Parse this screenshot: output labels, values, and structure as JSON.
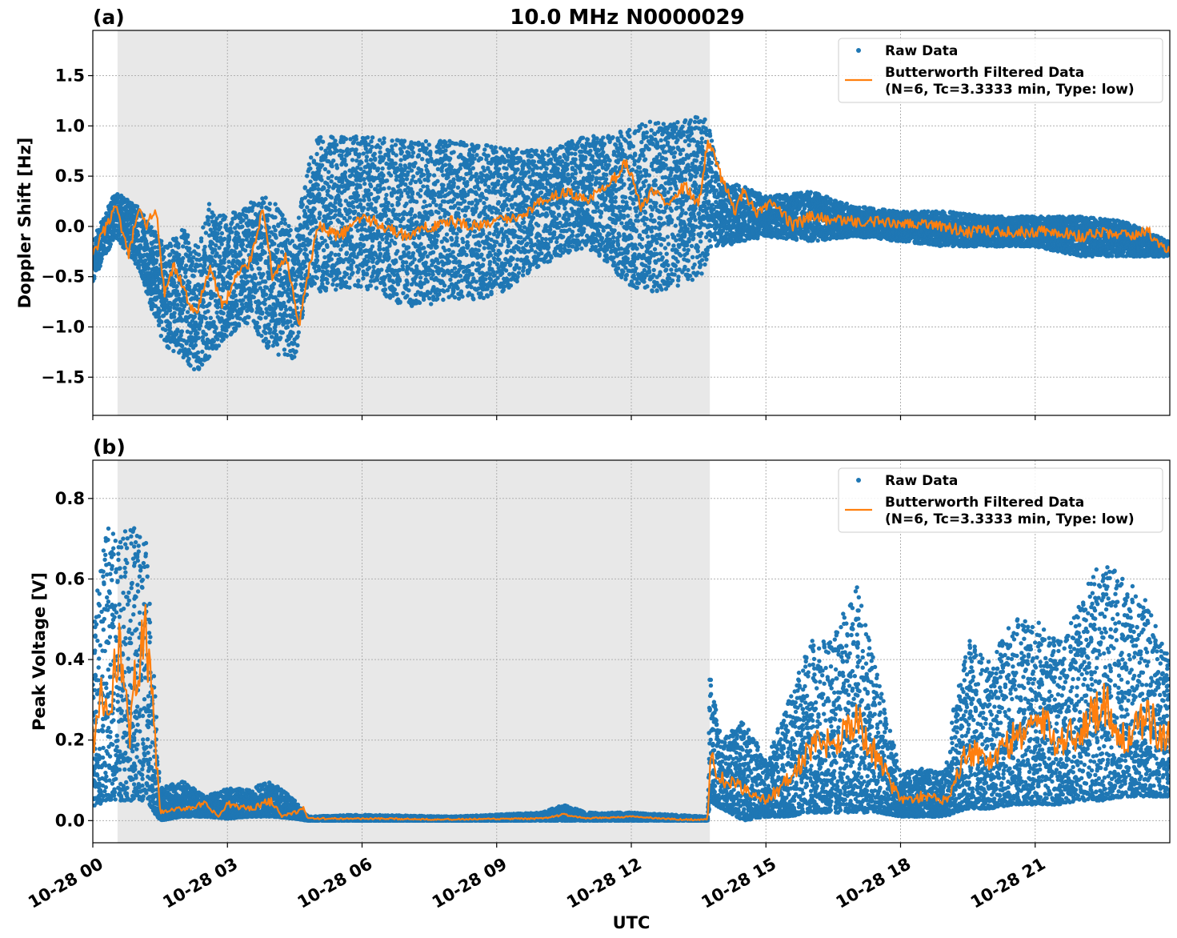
{
  "figure": {
    "suptitle": "10.0 MHz N0000029",
    "xlabel": "UTC",
    "x_tick_labels": [
      "10-28 00",
      "10-28 03",
      "10-28 06",
      "10-28 09",
      "10-28 12",
      "10-28 15",
      "10-28 18",
      "10-28 21"
    ],
    "x_ticks_hours": [
      0,
      3,
      6,
      9,
      12,
      15,
      18,
      21
    ],
    "x_range_hours": [
      0,
      24
    ],
    "shaded_span_hours": [
      0.55,
      13.75
    ],
    "colors": {
      "raw": "#1f77b4",
      "filtered": "#ff7f0e",
      "shade": "#e8e8e8",
      "grid": "#b0b0b0"
    }
  },
  "chart_data": [
    {
      "type": "line",
      "panel_label": "(a)",
      "ylabel": "Doppler Shift [Hz]",
      "ylim": [
        -1.88,
        1.95
      ],
      "y_ticks": [
        -1.5,
        -1.0,
        -0.5,
        0.0,
        0.5,
        1.0,
        1.5
      ],
      "y_tick_labels": [
        "−1.5",
        "−1.0",
        "−0.5",
        "0.0",
        "0.5",
        "1.0",
        "1.5"
      ],
      "grid": true,
      "legend_position": "top-right",
      "legend": [
        "Raw Data",
        "Butterworth Filtered Data",
        "(N=6, Tc=3.3333 min, Type: low)"
      ],
      "series": [
        {
          "name": "Butterworth Filtered Data",
          "x": [
            0,
            0.5,
            0.8,
            1.0,
            1.2,
            1.4,
            1.6,
            1.8,
            2.0,
            2.3,
            2.6,
            2.9,
            3.2,
            3.5,
            3.8,
            4.0,
            4.3,
            4.6,
            4.75,
            5.0,
            5.5,
            6.0,
            6.5,
            7.0,
            7.5,
            8.0,
            8.5,
            9.0,
            9.5,
            10.0,
            10.5,
            11.0,
            11.5,
            11.9,
            12.2,
            12.5,
            12.8,
            13.2,
            13.5,
            13.7,
            14.0,
            14.3,
            14.5,
            14.8,
            15.2,
            15.6,
            16.0,
            16.5,
            17.0,
            17.5,
            18.0,
            18.5,
            19.0,
            19.5,
            20.0,
            20.5,
            21.0,
            21.5,
            22.0,
            22.5,
            23.0,
            23.5,
            24.0
          ],
          "y": [
            -0.3,
            0.2,
            -0.3,
            0.15,
            0.0,
            0.2,
            -0.7,
            -0.4,
            -0.6,
            -0.9,
            -0.4,
            -0.8,
            -0.5,
            -0.35,
            0.2,
            -0.5,
            -0.3,
            -1.0,
            -0.6,
            0.0,
            -0.1,
            0.1,
            0.0,
            -0.1,
            0.0,
            0.05,
            0.0,
            0.05,
            0.1,
            0.25,
            0.35,
            0.25,
            0.4,
            0.65,
            0.2,
            0.35,
            0.25,
            0.4,
            0.2,
            0.85,
            0.5,
            0.15,
            0.35,
            0.15,
            0.25,
            0.0,
            0.1,
            0.05,
            0.05,
            0.05,
            0.0,
            0.05,
            0.0,
            -0.05,
            -0.05,
            -0.05,
            -0.05,
            -0.05,
            -0.1,
            -0.05,
            -0.1,
            -0.05,
            -0.25
          ]
        },
        {
          "name": "Raw Data",
          "x": [
            0,
            0.5,
            1.0,
            1.6,
            2.0,
            2.3,
            2.6,
            3.0,
            3.5,
            4.0,
            4.5,
            4.8,
            5.0,
            6.0,
            7.0,
            8.0,
            9.0,
            10.0,
            11.0,
            11.5,
            12.0,
            12.5,
            13.0,
            13.6,
            13.75,
            14.0,
            14.5,
            15.0,
            16.0,
            17.0,
            18.0,
            19.0,
            20.0,
            21.0,
            22.0,
            23.0,
            24.0
          ],
          "y_upper": [
            -0.15,
            0.35,
            0.2,
            -0.2,
            0.0,
            -0.2,
            0.25,
            0.1,
            0.25,
            0.3,
            -0.1,
            0.6,
            0.9,
            0.9,
            0.85,
            0.85,
            0.8,
            0.75,
            0.9,
            0.9,
            1.0,
            1.05,
            1.05,
            1.1,
            1.0,
            0.45,
            0.4,
            0.3,
            0.35,
            0.2,
            0.15,
            0.15,
            0.1,
            0.1,
            0.1,
            0.05,
            -0.15
          ],
          "y_lower": [
            -0.55,
            -0.1,
            -0.4,
            -1.2,
            -1.3,
            -1.45,
            -1.3,
            -1.1,
            -0.95,
            -1.3,
            -1.35,
            -0.6,
            -0.65,
            -0.6,
            -0.8,
            -0.75,
            -0.7,
            -0.4,
            -0.2,
            -0.4,
            -0.6,
            -0.65,
            -0.6,
            -0.5,
            -0.2,
            -0.2,
            -0.15,
            -0.1,
            -0.15,
            -0.1,
            -0.15,
            -0.2,
            -0.2,
            -0.2,
            -0.3,
            -0.3,
            -0.3
          ]
        }
      ]
    },
    {
      "type": "line",
      "panel_label": "(b)",
      "ylabel": "Peak Voltage [V]",
      "ylim": [
        -0.055,
        0.895
      ],
      "y_ticks": [
        0.0,
        0.2,
        0.4,
        0.6,
        0.8
      ],
      "y_tick_labels": [
        "0.0",
        "0.2",
        "0.4",
        "0.6",
        "0.8"
      ],
      "grid": true,
      "legend_position": "top-right",
      "legend": [
        "Raw Data",
        "Butterworth Filtered Data",
        "(N=6, Tc=3.3333 min, Type: low)"
      ],
      "series": [
        {
          "name": "Butterworth Filtered Data",
          "x": [
            0,
            0.2,
            0.4,
            0.6,
            0.8,
            1.0,
            1.2,
            1.35,
            1.5,
            2.0,
            2.5,
            2.8,
            3.0,
            3.5,
            4.0,
            4.2,
            4.5,
            4.7,
            4.8,
            6.0,
            8.0,
            10.0,
            10.5,
            11.0,
            12.0,
            13.0,
            13.7,
            13.75,
            14.0,
            14.5,
            15.0,
            15.5,
            16.0,
            16.5,
            17.0,
            17.5,
            18.0,
            18.5,
            19.0,
            19.2,
            19.5,
            20.0,
            20.5,
            21.0,
            21.5,
            22.0,
            22.5,
            23.0,
            23.5,
            24.0
          ],
          "y": [
            0.2,
            0.3,
            0.25,
            0.5,
            0.2,
            0.4,
            0.45,
            0.25,
            0.02,
            0.03,
            0.04,
            0.01,
            0.04,
            0.03,
            0.05,
            0.01,
            0.02,
            0.03,
            0.005,
            0.005,
            0.003,
            0.005,
            0.015,
            0.005,
            0.01,
            0.003,
            0.002,
            0.15,
            0.1,
            0.08,
            0.05,
            0.1,
            0.18,
            0.2,
            0.25,
            0.15,
            0.05,
            0.06,
            0.05,
            0.1,
            0.18,
            0.15,
            0.2,
            0.25,
            0.2,
            0.22,
            0.3,
            0.2,
            0.25,
            0.2
          ]
        },
        {
          "name": "Raw Data",
          "x": [
            0,
            0.3,
            0.6,
            0.9,
            1.2,
            1.5,
            2.0,
            2.5,
            3.0,
            3.5,
            4.0,
            4.5,
            4.8,
            6.0,
            8.0,
            10.0,
            10.5,
            11.0,
            12.0,
            13.7,
            13.75,
            14.0,
            14.5,
            15.0,
            15.5,
            16.0,
            16.5,
            17.0,
            17.5,
            18.0,
            18.5,
            19.0,
            19.2,
            19.5,
            20.0,
            20.5,
            21.0,
            21.5,
            22.0,
            22.5,
            23.0,
            23.5,
            24.0
          ],
          "y_upper": [
            0.5,
            0.75,
            0.7,
            0.75,
            0.7,
            0.08,
            0.1,
            0.06,
            0.08,
            0.08,
            0.1,
            0.05,
            0.01,
            0.015,
            0.01,
            0.02,
            0.04,
            0.02,
            0.02,
            0.01,
            0.38,
            0.2,
            0.25,
            0.15,
            0.3,
            0.45,
            0.45,
            0.6,
            0.35,
            0.12,
            0.13,
            0.12,
            0.3,
            0.45,
            0.4,
            0.5,
            0.5,
            0.45,
            0.55,
            0.65,
            0.6,
            0.55,
            0.4
          ],
          "y_lower": [
            0.03,
            0.05,
            0.05,
            0.05,
            0.05,
            0.0,
            0.01,
            0.01,
            0.005,
            0.01,
            0.01,
            0.005,
            0.0,
            0.0,
            0.0,
            0.0,
            0.0,
            0.0,
            0.0,
            0.0,
            0.05,
            0.03,
            0.0,
            0.01,
            0.01,
            0.02,
            0.02,
            0.02,
            0.02,
            0.01,
            0.01,
            0.01,
            0.02,
            0.03,
            0.03,
            0.04,
            0.04,
            0.04,
            0.05,
            0.05,
            0.06,
            0.06,
            0.06
          ]
        }
      ]
    }
  ]
}
